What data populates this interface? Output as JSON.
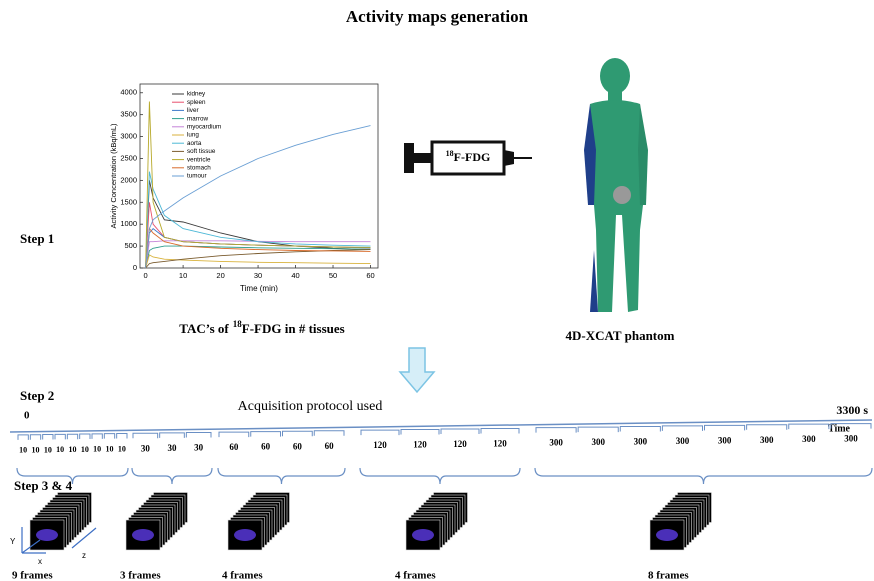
{
  "title": "Activity maps generation",
  "steps": [
    "Step 1",
    "Step 2",
    "Step 3 & 4"
  ],
  "chart_data": {
    "type": "line",
    "xlabel": "Time (min)",
    "ylabel": "Activity Concentration (kBq/mL)",
    "x": [
      0,
      1,
      2,
      5,
      10,
      20,
      30,
      40,
      50,
      60
    ],
    "xlim": [
      -1.5,
      62
    ],
    "ylim": [
      0,
      4200
    ],
    "xticks": [
      0,
      10,
      20,
      30,
      40,
      50,
      60
    ],
    "yticks": [
      0,
      500,
      1000,
      1500,
      2000,
      2500,
      3000,
      3500,
      4000
    ],
    "legend": "upper-left",
    "series": [
      {
        "name": "kidney",
        "color": "#3a3a3a",
        "values": [
          0,
          2000,
          1600,
          1100,
          1050,
          800,
          600,
          500,
          450,
          420
        ]
      },
      {
        "name": "spleen",
        "color": "#e8506d",
        "values": [
          0,
          1500,
          1000,
          700,
          600,
          550,
          520,
          500,
          480,
          460
        ]
      },
      {
        "name": "liver",
        "color": "#3c78c8",
        "values": [
          0,
          800,
          900,
          700,
          600,
          550,
          520,
          500,
          480,
          460
        ]
      },
      {
        "name": "marrow",
        "color": "#2e9e8e",
        "values": [
          0,
          400,
          450,
          500,
          500,
          480,
          460,
          450,
          440,
          430
        ]
      },
      {
        "name": "myocardium",
        "color": "#c483d8",
        "values": [
          0,
          600,
          600,
          620,
          620,
          620,
          610,
          600,
          600,
          600
        ]
      },
      {
        "name": "lung",
        "color": "#d8b23c",
        "values": [
          0,
          300,
          250,
          200,
          180,
          150,
          130,
          120,
          110,
          100
        ]
      },
      {
        "name": "aorta",
        "color": "#4db8d6",
        "values": [
          0,
          2200,
          1800,
          1200,
          900,
          700,
          600,
          550,
          520,
          500
        ]
      },
      {
        "name": "soft tissue",
        "color": "#7a5b2e",
        "values": [
          0,
          100,
          120,
          150,
          200,
          280,
          330,
          370,
          400,
          420
        ]
      },
      {
        "name": "ventricle",
        "color": "#b7a92a",
        "values": [
          0,
          3800,
          1500,
          700,
          600,
          550,
          520,
          500,
          480,
          470
        ]
      },
      {
        "name": "stomach",
        "color": "#d96b2b",
        "values": [
          0,
          900,
          800,
          600,
          500,
          450,
          420,
          400,
          390,
          380
        ]
      },
      {
        "name": "tumour",
        "color": "#6a9fd4",
        "values": [
          0,
          900,
          1100,
          1300,
          1600,
          2100,
          2500,
          2800,
          3050,
          3250
        ]
      }
    ]
  },
  "chart_caption": {
    "before": "TAC’s of",
    "superscript": "18",
    "after": "F-FDG in # tissues"
  },
  "syringe_label": {
    "superscript": "18",
    "text": "F-FDG"
  },
  "phantom_label": "4D-XCAT phantom",
  "protocol": {
    "title": "Acquisition protocol used",
    "start": "0",
    "end": "3300 s",
    "axis": "Time",
    "groups": [
      {
        "durations": [
          10,
          10,
          10,
          10,
          10,
          10,
          10,
          10,
          10
        ],
        "label": "9 frames"
      },
      {
        "durations": [
          30,
          30,
          30
        ],
        "label": "3 frames"
      },
      {
        "durations": [
          60,
          60,
          60,
          60
        ],
        "label": "4 frames"
      },
      {
        "durations": [
          120,
          120,
          120,
          120
        ],
        "label": "4 frames"
      },
      {
        "durations": [
          300,
          300,
          300,
          300,
          300,
          300,
          300,
          300
        ],
        "label": "8 frames"
      }
    ]
  },
  "axes_labels": [
    "Y",
    "x",
    "z"
  ]
}
